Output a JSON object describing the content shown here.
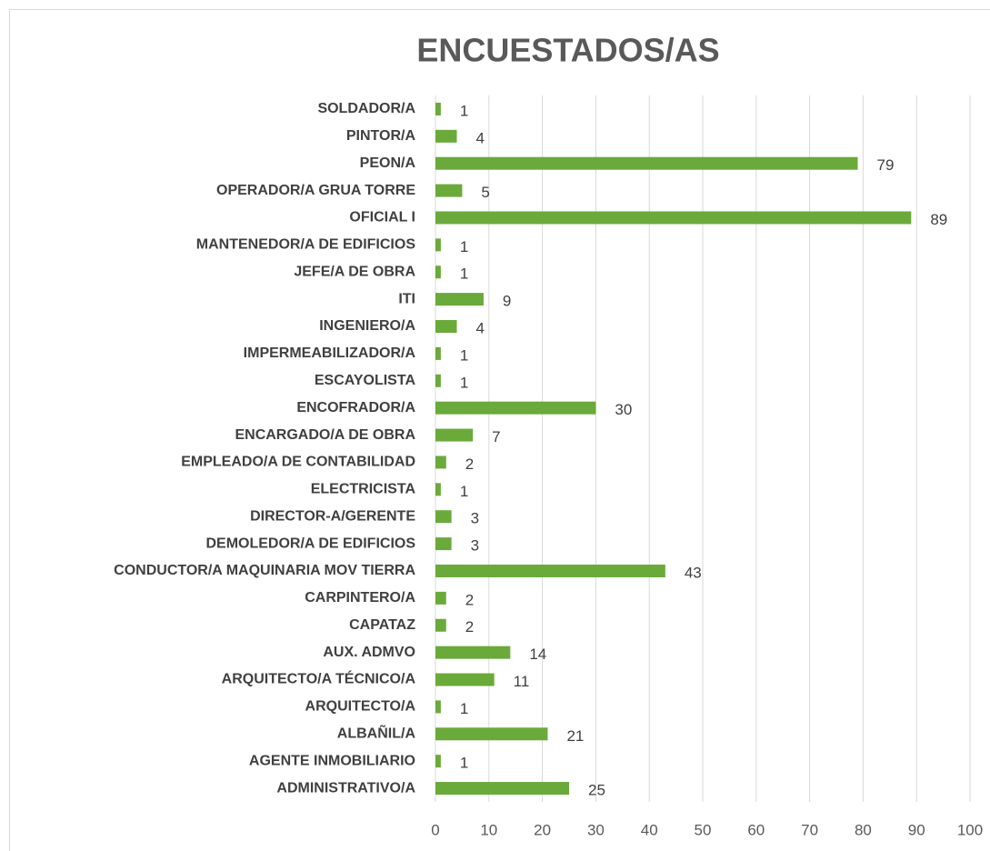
{
  "chart_data": {
    "type": "bar",
    "orientation": "horizontal",
    "title": "ENCUESTADOS/AS",
    "categories": [
      "SOLDADOR/A",
      "PINTOR/A",
      "PEON/A",
      "OPERADOR/A GRUA TORRE",
      "OFICIAL I",
      "MANTENEDOR/A DE EDIFICIOS",
      "JEFE/A DE OBRA",
      "ITI",
      "INGENIERO/A",
      "IMPERMEABILIZADOR/A",
      "ESCAYOLISTA",
      "ENCOFRADOR/A",
      "ENCARGADO/A DE OBRA",
      "EMPLEADO/A DE CONTABILIDAD",
      "ELECTRICISTA",
      "DIRECTOR-A/GERENTE",
      "DEMOLEDOR/A DE EDIFICIOS",
      "CONDUCTOR/A MAQUINARIA MOV TIERRA",
      "CARPINTERO/A",
      "CAPATAZ",
      "AUX. ADMVO",
      "ARQUITECTO/A TÉCNICO/A",
      "ARQUITECTO/A",
      "ALBAÑIL/A",
      "AGENTE INMOBILIARIO",
      "ADMINISTRATIVO/A"
    ],
    "values": [
      1,
      4,
      79,
      5,
      89,
      1,
      1,
      9,
      4,
      1,
      1,
      30,
      7,
      2,
      1,
      3,
      3,
      43,
      2,
      2,
      14,
      11,
      1,
      21,
      1,
      25
    ],
    "color": "#6aaa3a",
    "xlim": [
      0,
      100
    ],
    "xticks": [
      0,
      10,
      20,
      30,
      40,
      50,
      60,
      70,
      80,
      90,
      100
    ],
    "grid": true
  }
}
